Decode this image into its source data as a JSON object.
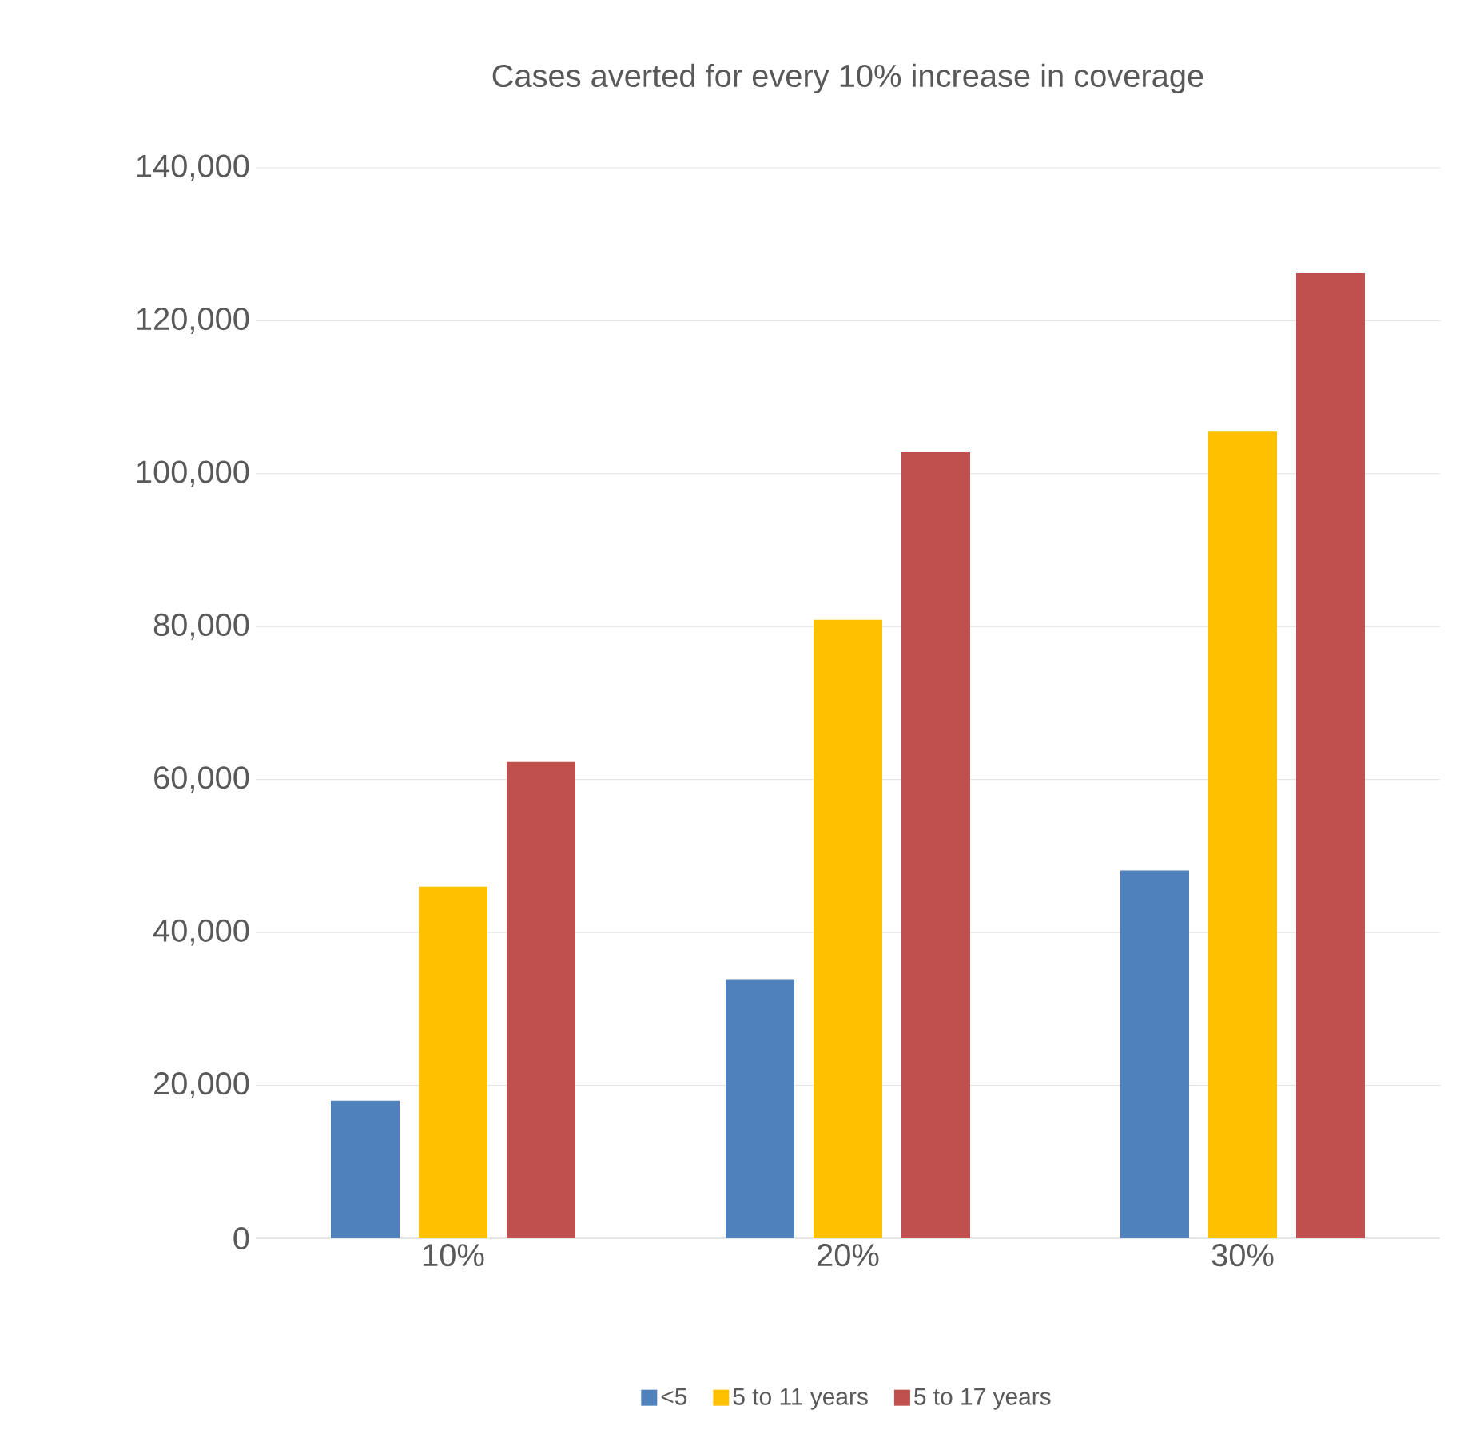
{
  "chart_data": {
    "type": "bar",
    "title": "Cases averted for every 10% increase in coverage",
    "categories": [
      "10%",
      "20%",
      "30%"
    ],
    "series": [
      {
        "name": "<5",
        "color": "#4f81bd",
        "values": [
          18000,
          33800,
          48100
        ]
      },
      {
        "name": "5 to 11 years",
        "color": "#ffc000",
        "values": [
          46000,
          80900,
          105500
        ]
      },
      {
        "name": "5 to 17 years",
        "color": "#c0504d",
        "values": [
          62300,
          102800,
          126200
        ]
      }
    ],
    "ylim": [
      0,
      140000
    ],
    "yticks": [
      {
        "value": 0,
        "label": "0"
      },
      {
        "value": 20000,
        "label": "20,000"
      },
      {
        "value": 40000,
        "label": "40,000"
      },
      {
        "value": 60000,
        "label": "60,000"
      },
      {
        "value": 80000,
        "label": "80,000"
      },
      {
        "value": 100000,
        "label": "100,000"
      },
      {
        "value": 120000,
        "label": "120,000"
      },
      {
        "value": 140000,
        "label": "140,000"
      }
    ],
    "grid": "y",
    "legend": "bottom"
  }
}
